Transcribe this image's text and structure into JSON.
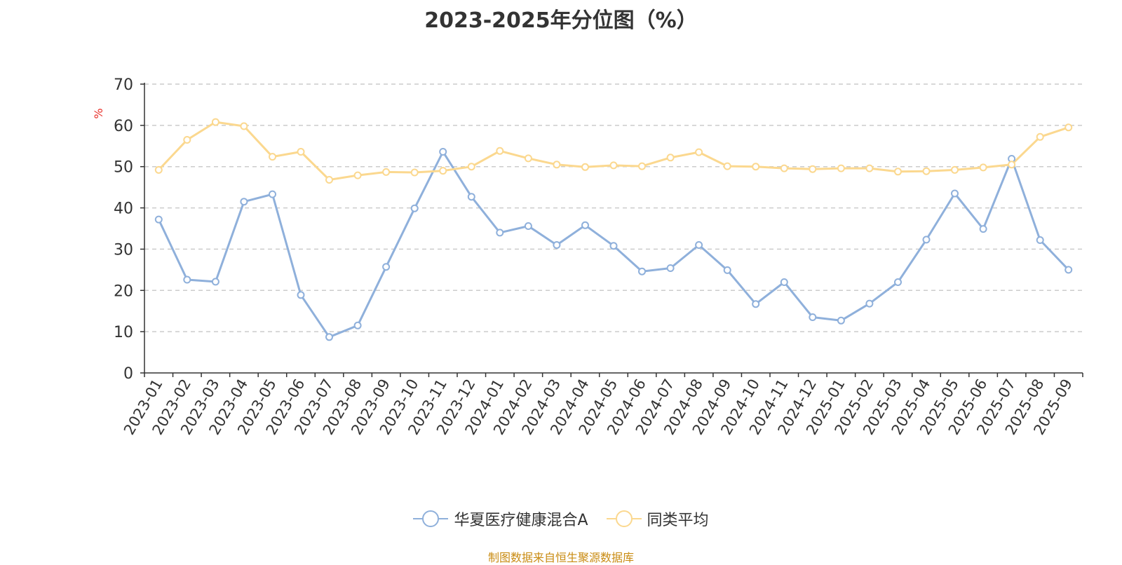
{
  "chart_data": {
    "type": "line",
    "title": "2023-2025年分位图（%）",
    "ylabel": "%",
    "xlabel": "",
    "ylim": [
      0,
      70
    ],
    "yticks": [
      0,
      10,
      20,
      30,
      40,
      50,
      60,
      70
    ],
    "grid": true,
    "legend_position": "bottom",
    "categories": [
      "2023-01",
      "2023-02",
      "2023-03",
      "2023-04",
      "2023-05",
      "2023-06",
      "2023-07",
      "2023-08",
      "2023-09",
      "2023-10",
      "2023-11",
      "2023-12",
      "2024-01",
      "2024-02",
      "2024-03",
      "2024-04",
      "2024-05",
      "2024-06",
      "2024-07",
      "2024-08",
      "2024-09",
      "2024-10",
      "2024-11",
      "2024-12",
      "2025-01",
      "2025-02",
      "2025-03",
      "2025-04",
      "2025-05",
      "2025-06",
      "2025-07",
      "2025-08",
      "2025-09"
    ],
    "series": [
      {
        "name": "华夏医疗健康混合A",
        "color": "#8fb0db",
        "values": [
          37.2,
          22.6,
          22.1,
          41.5,
          43.3,
          18.9,
          8.7,
          11.5,
          25.7,
          39.9,
          53.6,
          42.7,
          34.0,
          35.6,
          31.0,
          35.8,
          30.8,
          24.6,
          25.4,
          31.0,
          24.9,
          16.7,
          22.0,
          13.5,
          12.7,
          16.8,
          22.0,
          32.3,
          43.5,
          34.9,
          51.9,
          32.2,
          25.0
        ]
      },
      {
        "name": "同类平均",
        "color": "#fbd88f",
        "values": [
          49.2,
          56.5,
          60.8,
          59.8,
          52.4,
          53.6,
          46.8,
          47.9,
          48.7,
          48.6,
          49.0,
          50.0,
          53.8,
          52.0,
          50.5,
          49.9,
          50.3,
          50.1,
          52.2,
          53.5,
          50.1,
          50.0,
          49.6,
          49.4,
          49.6,
          49.6,
          48.8,
          48.9,
          49.2,
          49.8,
          50.5,
          57.2,
          59.5
        ]
      }
    ]
  },
  "source_note": "制图数据来自恒生聚源数据库"
}
